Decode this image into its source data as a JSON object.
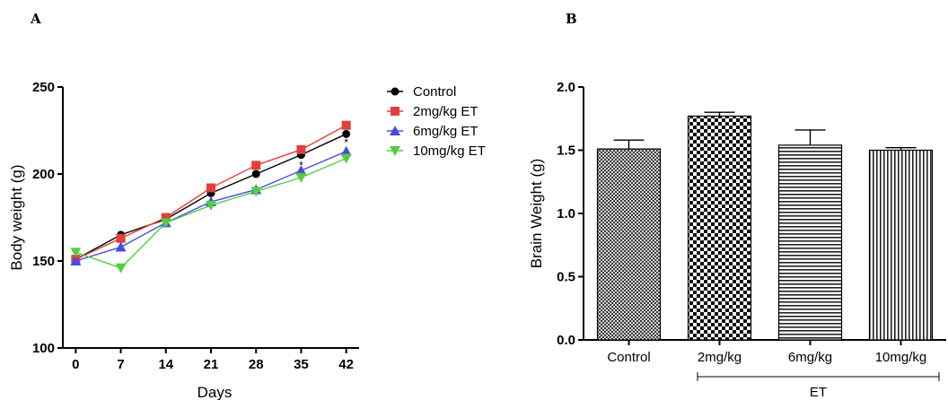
{
  "chart_data": [
    {
      "panel": "A",
      "type": "line",
      "xlabel": "Days",
      "ylabel": "Body weight (g)",
      "x": [
        0,
        7,
        14,
        21,
        28,
        35,
        42
      ],
      "ylim": [
        100,
        250
      ],
      "yticks": [
        100,
        150,
        200,
        250
      ],
      "legend": "top-right",
      "series": [
        {
          "name": "Control",
          "color": "#000000",
          "marker": "circle",
          "values": [
            151,
            165,
            174,
            189,
            200,
            211,
            223
          ]
        },
        {
          "name": "2mg/kg ET",
          "color": "#e0403a",
          "marker": "square",
          "values": [
            151,
            163,
            175,
            192,
            205,
            214,
            228
          ]
        },
        {
          "name": "6mg/kg ET",
          "color": "#4a4ae0",
          "marker": "triangle-up",
          "values": [
            150,
            158,
            172,
            184,
            191,
            202,
            213
          ]
        },
        {
          "name": "10mg/kg ET",
          "color": "#55cc44",
          "marker": "triangle-down",
          "values": [
            155,
            146,
            172,
            182,
            190,
            198,
            209
          ]
        }
      ],
      "annotations": [
        {
          "text": "*",
          "x": 35,
          "y": 205
        },
        {
          "text": "*",
          "x": 42,
          "y": 218
        }
      ]
    },
    {
      "panel": "B",
      "type": "bar",
      "ylabel": "Brain Weight (g)",
      "categories": [
        "Control",
        "2mg/kg",
        "6mg/kg",
        "10mg/kg"
      ],
      "values": [
        1.51,
        1.77,
        1.54,
        1.5
      ],
      "errors": [
        0.07,
        0.03,
        0.12,
        0.02
      ],
      "patterns": [
        "dense-crosshatch",
        "checker",
        "horizontal-lines",
        "vertical-lines"
      ],
      "ylim": [
        0,
        2.0
      ],
      "yticks": [
        "0.0",
        "0.5",
        "1.0",
        "1.5",
        "2.0"
      ],
      "group_label": "ET"
    }
  ]
}
